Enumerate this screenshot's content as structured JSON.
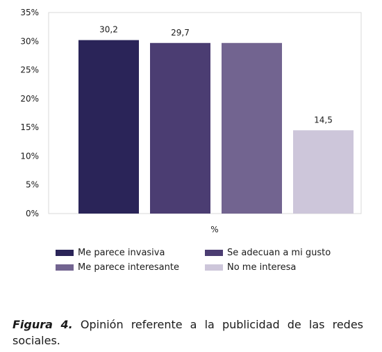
{
  "chart_data": {
    "type": "bar",
    "categories": [
      "Me parece invasiva",
      "Se adecuan a mi gusto",
      "Me parece interesante",
      "No me interesa"
    ],
    "values": [
      30.2,
      29.7,
      29.7,
      14.5
    ],
    "data_labels": [
      "30,2",
      "29,7",
      "",
      "14,5"
    ],
    "colors": [
      "#2a2458",
      "#4b3d72",
      "#726490",
      "#cdc6da"
    ],
    "xlabel": "%",
    "ylabel": "",
    "ylim": [
      0,
      35
    ],
    "yticks": [
      0,
      5,
      10,
      15,
      20,
      25,
      30,
      35
    ],
    "ytick_labels": [
      "0%",
      "5%",
      "10%",
      "15%",
      "20%",
      "25%",
      "30%",
      "35%"
    ],
    "grid": false,
    "legend_position": "bottom",
    "legend": [
      "Me parece invasiva",
      "Se adecuan a mi gusto",
      "Me parece interesante",
      "No me interesa"
    ]
  },
  "caption": {
    "label": "Figura 4.",
    "text": " Opinión referente a la publicidad de las redes sociales."
  }
}
